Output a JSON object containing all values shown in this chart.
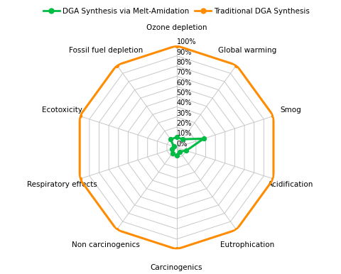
{
  "categories": [
    "Ozone depletion",
    "Global warming",
    "Smog",
    "Acidification",
    "Eutrophication",
    "Carcinogenics",
    "Non carcinogenics",
    "Respiratory effects",
    "Ecotoxicity",
    "Fossil fuel depletion"
  ],
  "traditional_values": [
    100,
    100,
    100,
    100,
    100,
    100,
    100,
    100,
    100,
    100
  ],
  "new_values": [
    10,
    10,
    28,
    10,
    5,
    8,
    7,
    5,
    3,
    10
  ],
  "traditional_color": "#FF8C00",
  "new_color": "#00BB44",
  "grid_color": "#C8C8C8",
  "tick_labels": [
    "0%",
    "10%",
    "20%",
    "30%",
    "40%",
    "50%",
    "60%",
    "70%",
    "80%",
    "90%",
    "100%"
  ],
  "tick_values": [
    0,
    10,
    20,
    30,
    40,
    50,
    60,
    70,
    80,
    90,
    100
  ],
  "legend_new": "DGA Synthesis via Melt-Amidation",
  "legend_trad": "Traditional DGA Synthesis",
  "figsize": [
    4.8,
    3.86
  ],
  "dpi": 100
}
